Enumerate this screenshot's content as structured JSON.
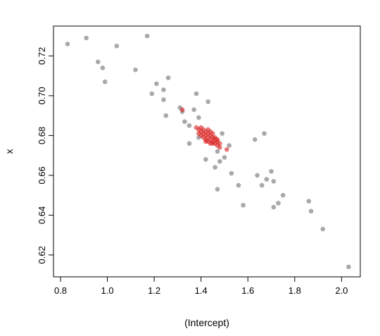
{
  "chart_data": {
    "type": "scatter",
    "xlabel": "(Intercept)",
    "ylabel": "x",
    "xlim": [
      0.77,
      2.08
    ],
    "ylim": [
      0.609,
      0.735
    ],
    "xticks": [
      0.8,
      1.0,
      1.2,
      1.4,
      1.6,
      1.8,
      2.0
    ],
    "xtick_labels": [
      "0.8",
      "1.0",
      "1.2",
      "1.4",
      "1.6",
      "1.8",
      "2.0"
    ],
    "yticks": [
      0.62,
      0.64,
      0.66,
      0.68,
      0.7,
      0.72
    ],
    "ytick_labels": [
      "0.62",
      "0.64",
      "0.66",
      "0.68",
      "0.70",
      "0.72"
    ],
    "grid": false,
    "series": [
      {
        "color": "#a0a0a0",
        "points": [
          [
            0.83,
            0.726
          ],
          [
            0.91,
            0.729
          ],
          [
            0.96,
            0.717
          ],
          [
            0.98,
            0.714
          ],
          [
            0.99,
            0.707
          ],
          [
            1.04,
            0.725
          ],
          [
            1.12,
            0.713
          ],
          [
            1.17,
            0.73
          ],
          [
            1.19,
            0.701
          ],
          [
            1.21,
            0.706
          ],
          [
            1.24,
            0.703
          ],
          [
            1.24,
            0.698
          ],
          [
            1.25,
            0.69
          ],
          [
            1.26,
            0.709
          ],
          [
            1.31,
            0.694
          ],
          [
            1.32,
            0.692
          ],
          [
            1.33,
            0.687
          ],
          [
            1.35,
            0.685
          ],
          [
            1.35,
            0.676
          ],
          [
            1.37,
            0.693
          ],
          [
            1.38,
            0.701
          ],
          [
            1.39,
            0.679
          ],
          [
            1.39,
            0.689
          ],
          [
            1.42,
            0.668
          ],
          [
            1.43,
            0.697
          ],
          [
            1.46,
            0.664
          ],
          [
            1.47,
            0.653
          ],
          [
            1.47,
            0.672
          ],
          [
            1.48,
            0.667
          ],
          [
            1.49,
            0.681
          ],
          [
            1.5,
            0.669
          ],
          [
            1.52,
            0.675
          ],
          [
            1.53,
            0.661
          ],
          [
            1.56,
            0.655
          ],
          [
            1.58,
            0.645
          ],
          [
            1.63,
            0.678
          ],
          [
            1.64,
            0.66
          ],
          [
            1.66,
            0.655
          ],
          [
            1.67,
            0.681
          ],
          [
            1.68,
            0.658
          ],
          [
            1.7,
            0.662
          ],
          [
            1.71,
            0.644
          ],
          [
            1.71,
            0.657
          ],
          [
            1.73,
            0.646
          ],
          [
            1.75,
            0.65
          ],
          [
            1.86,
            0.647
          ],
          [
            1.87,
            0.642
          ],
          [
            1.92,
            0.633
          ],
          [
            2.03,
            0.614
          ]
        ]
      },
      {
        "color": "#d81e1e",
        "points": [
          [
            1.32,
            0.693
          ],
          [
            1.38,
            0.684
          ],
          [
            1.39,
            0.683
          ],
          [
            1.4,
            0.682
          ],
          [
            1.4,
            0.68
          ],
          [
            1.41,
            0.683
          ],
          [
            1.41,
            0.681
          ],
          [
            1.42,
            0.682
          ],
          [
            1.42,
            0.68
          ],
          [
            1.42,
            0.678
          ],
          [
            1.43,
            0.681
          ],
          [
            1.43,
            0.679
          ],
          [
            1.43,
            0.677
          ],
          [
            1.44,
            0.68
          ],
          [
            1.44,
            0.678
          ],
          [
            1.44,
            0.682
          ],
          [
            1.45,
            0.679
          ],
          [
            1.45,
            0.677
          ],
          [
            1.45,
            0.676
          ],
          [
            1.46,
            0.678
          ],
          [
            1.46,
            0.676
          ],
          [
            1.47,
            0.677
          ],
          [
            1.47,
            0.675
          ],
          [
            1.48,
            0.674
          ],
          [
            1.48,
            0.676
          ],
          [
            1.39,
            0.681
          ],
          [
            1.4,
            0.684
          ],
          [
            1.41,
            0.679
          ],
          [
            1.43,
            0.683
          ],
          [
            1.46,
            0.679
          ],
          [
            1.51,
            0.673
          ],
          [
            1.44,
            0.676
          ],
          [
            1.42,
            0.677
          ],
          [
            1.47,
            0.678
          ],
          [
            1.45,
            0.681
          ]
        ]
      }
    ]
  }
}
